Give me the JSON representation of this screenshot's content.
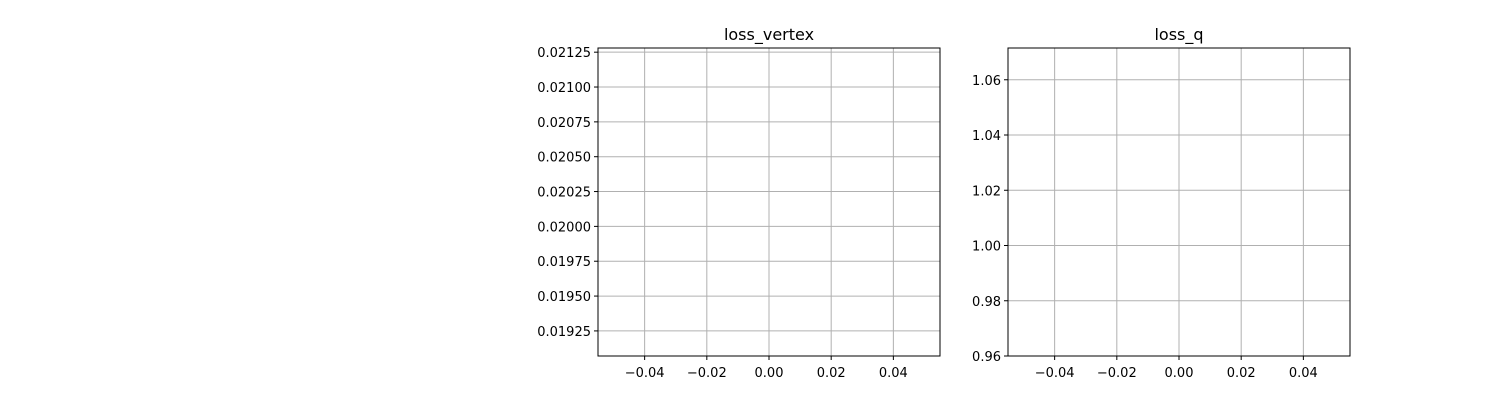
{
  "chart_data": [
    {
      "type": "line",
      "title": "loss_vertex",
      "xlabel": "",
      "ylabel": "",
      "series": [],
      "xlim": [
        -0.055,
        0.055
      ],
      "ylim": [
        0.01907,
        0.02128
      ],
      "xticks": [
        -0.04,
        -0.02,
        0.0,
        0.02,
        0.04
      ],
      "xtick_labels": [
        "−0.04",
        "−0.02",
        "0.00",
        "0.02",
        "0.04"
      ],
      "yticks": [
        0.01925,
        0.0195,
        0.01975,
        0.02,
        0.02025,
        0.0205,
        0.02075,
        0.021,
        0.02125
      ],
      "ytick_labels": [
        "0.01925",
        "0.01950",
        "0.01975",
        "0.02000",
        "0.02025",
        "0.02050",
        "0.02075",
        "0.02100",
        "0.02125"
      ],
      "grid": true
    },
    {
      "type": "line",
      "title": "loss_q",
      "xlabel": "",
      "ylabel": "",
      "series": [],
      "xlim": [
        -0.055,
        0.055
      ],
      "ylim": [
        0.96,
        1.0715
      ],
      "xticks": [
        -0.04,
        -0.02,
        0.0,
        0.02,
        0.04
      ],
      "xtick_labels": [
        "−0.04",
        "−0.02",
        "0.00",
        "0.02",
        "0.04"
      ],
      "yticks": [
        0.96,
        0.98,
        1.0,
        1.02,
        1.04,
        1.06
      ],
      "ytick_labels": [
        "0.96",
        "0.98",
        "1.00",
        "1.02",
        "1.04",
        "1.06"
      ],
      "grid": true
    }
  ]
}
